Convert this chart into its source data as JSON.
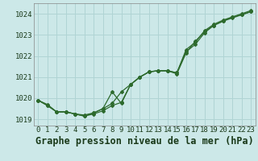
{
  "background_color": "#cce8e8",
  "grid_color": "#b0d4d4",
  "line_color": "#2d6a2d",
  "marker_color": "#2d6a2d",
  "title": "Graphe pression niveau de la mer (hPa)",
  "xlim": [
    -0.5,
    23.5
  ],
  "ylim": [
    1018.7,
    1024.5
  ],
  "yticks": [
    1019,
    1020,
    1021,
    1022,
    1023,
    1024
  ],
  "xticks": [
    0,
    1,
    2,
    3,
    4,
    5,
    6,
    7,
    8,
    9,
    10,
    11,
    12,
    13,
    14,
    15,
    16,
    17,
    18,
    19,
    20,
    21,
    22,
    23
  ],
  "series1_x": [
    0,
    1,
    2,
    3,
    4,
    5,
    6,
    7,
    8,
    9,
    10,
    11,
    12,
    13,
    14,
    15,
    16,
    17,
    18,
    19,
    20,
    21,
    22,
    23
  ],
  "series1_y": [
    1019.9,
    1019.7,
    1019.35,
    1019.35,
    1019.25,
    1019.15,
    1019.25,
    1019.4,
    1019.65,
    1019.8,
    1020.65,
    1021.0,
    1021.25,
    1021.3,
    1021.3,
    1021.2,
    1022.2,
    1022.55,
    1023.1,
    1023.45,
    1023.65,
    1023.85,
    1023.95,
    1024.1
  ],
  "series2_x": [
    0,
    1,
    2,
    3,
    4,
    5,
    6,
    7,
    8,
    9,
    10,
    11,
    12,
    13,
    14,
    15,
    16,
    17,
    18,
    19,
    20,
    21,
    22,
    23
  ],
  "series2_y": [
    1019.9,
    1019.65,
    1019.35,
    1019.35,
    1019.25,
    1019.15,
    1019.3,
    1019.5,
    1019.75,
    1020.3,
    1020.65,
    1021.0,
    1021.25,
    1021.3,
    1021.3,
    1021.2,
    1022.3,
    1022.65,
    1023.2,
    1023.5,
    1023.7,
    1023.85,
    1024.0,
    1024.15
  ],
  "series3_x": [
    0,
    1,
    2,
    3,
    4,
    5,
    6,
    7,
    8,
    9,
    10,
    11,
    12,
    13,
    14,
    15,
    16,
    17,
    18,
    19,
    20,
    21,
    22,
    23
  ],
  "series3_y": [
    1019.9,
    1019.65,
    1019.35,
    1019.35,
    1019.25,
    1019.2,
    1019.3,
    1019.5,
    1020.3,
    1019.75,
    1020.65,
    1021.0,
    1021.25,
    1021.3,
    1021.3,
    1021.15,
    1022.15,
    1022.7,
    1023.15,
    1023.45,
    1023.65,
    1023.8,
    1023.95,
    1024.1
  ],
  "title_fontsize": 8.5,
  "tick_fontsize": 6.5
}
